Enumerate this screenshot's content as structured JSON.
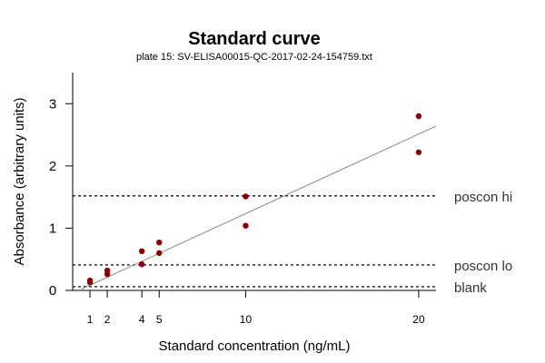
{
  "chart_data": {
    "type": "scatter",
    "title": "Standard curve",
    "subtitle": "plate 15: SV-ELISA00015-QC-2017-02-24-154759.txt",
    "xlabel": "Standard concentration (ng/mL)",
    "ylabel": "Absorbance (arbitrary units)",
    "xlim": [
      0,
      21
    ],
    "ylim": [
      0,
      3.5
    ],
    "x_ticks": [
      1,
      2,
      4,
      5,
      10,
      20
    ],
    "y_ticks": [
      0,
      1,
      2,
      3
    ],
    "grid": false,
    "points": [
      {
        "x": 1,
        "y": 0.13
      },
      {
        "x": 1,
        "y": 0.16
      },
      {
        "x": 2,
        "y": 0.26
      },
      {
        "x": 2,
        "y": 0.32
      },
      {
        "x": 4,
        "y": 0.42
      },
      {
        "x": 4,
        "y": 0.63
      },
      {
        "x": 5,
        "y": 0.6
      },
      {
        "x": 5,
        "y": 0.77
      },
      {
        "x": 10,
        "y": 1.04
      },
      {
        "x": 10,
        "y": 1.51
      },
      {
        "x": 20,
        "y": 2.22
      },
      {
        "x": 20,
        "y": 2.8
      }
    ],
    "fit_line": {
      "x": [
        0.5,
        21
      ],
      "y": [
        0.02,
        2.64
      ]
    },
    "reference_lines": [
      {
        "label": "poscon hi",
        "y": 1.52
      },
      {
        "label": "poscon lo",
        "y": 0.41
      },
      {
        "label": "blank",
        "y": 0.06
      }
    ],
    "colors": {
      "points": "#8b0000",
      "fit_line": "#888888",
      "reference_lines": "#333333",
      "axis": "#000000"
    }
  }
}
